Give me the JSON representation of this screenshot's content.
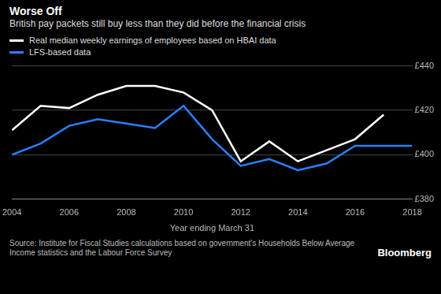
{
  "chart_data": {
    "type": "line",
    "title": "Worse Off",
    "subtitle": "British pay packets still buy less than they did before the financial crisis",
    "x_label": "Year ending March 31",
    "source": "Source: Institute for Fiscal Studies calculations based on government's Households Below Average Income statistics and the Labour Force Survey",
    "credit": "Bloomberg",
    "x": [
      2004,
      2005,
      2006,
      2007,
      2008,
      2009,
      2010,
      2011,
      2012,
      2013,
      2014,
      2015,
      2016,
      2017,
      2018
    ],
    "series": [
      {
        "name": "Real median weekly earnings of employees based on HBAI data",
        "color": "#ffffff",
        "values": [
          411,
          422,
          421,
          427,
          431,
          431,
          428,
          420,
          397,
          406,
          397,
          402,
          407,
          418,
          null
        ]
      },
      {
        "name": "LFS-based data",
        "color": "#2a7fff",
        "values": [
          400,
          405,
          413,
          416,
          414,
          412,
          422,
          407,
          395,
          398,
          393,
          396,
          404,
          404,
          404
        ]
      }
    ],
    "xlim": [
      2004,
      2018
    ],
    "xticks": [
      2004,
      2006,
      2008,
      2010,
      2012,
      2014,
      2016,
      2018
    ],
    "ylim": [
      380,
      440
    ],
    "yticks": [
      {
        "value": 380,
        "label": "£380"
      },
      {
        "value": 400,
        "label": "£400"
      },
      {
        "value": 420,
        "label": "£420"
      },
      {
        "value": 440,
        "label": "£440"
      }
    ],
    "grid": true
  }
}
